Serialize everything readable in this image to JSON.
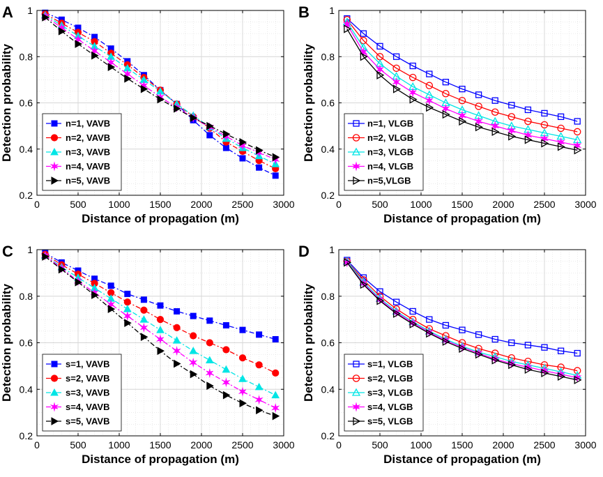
{
  "colors": {
    "series": [
      "#0000ff",
      "#ff0000",
      "#00e5e5",
      "#ff00ff",
      "#000000"
    ],
    "grid": "#d6d6d6",
    "axes": "#000000"
  },
  "chart_data": [
    {
      "panel_label": "A",
      "type": "line",
      "xlabel": "Distance of propagation (m)",
      "ylabel": "Detection probability",
      "xlim": [
        0,
        3000
      ],
      "ylim": [
        0.2,
        1
      ],
      "xticks": [
        "0",
        "500",
        "1000",
        "1500",
        "2000",
        "2500",
        "3000"
      ],
      "yticks": [
        "0.2",
        "0.4",
        "0.6",
        "0.8",
        "1"
      ],
      "grid": true,
      "line_style": "dashdot",
      "legend_position": "bottom-left",
      "x": [
        100,
        300,
        500,
        700,
        900,
        1100,
        1300,
        1500,
        1700,
        1900,
        2100,
        2300,
        2500,
        2700,
        2900
      ],
      "series": [
        {
          "name": "n=1, VAVB",
          "marker": "square-filled",
          "values": [
            0.99,
            0.96,
            0.925,
            0.885,
            0.835,
            0.78,
            0.72,
            0.655,
            0.595,
            0.525,
            0.46,
            0.405,
            0.36,
            0.32,
            0.285
          ]
        },
        {
          "name": "n=2, VAVB",
          "marker": "circle-filled",
          "values": [
            0.985,
            0.945,
            0.905,
            0.865,
            0.815,
            0.765,
            0.71,
            0.655,
            0.595,
            0.54,
            0.49,
            0.43,
            0.39,
            0.35,
            0.315
          ]
        },
        {
          "name": "n=3, VAVB",
          "marker": "triangle-up-filled",
          "values": [
            0.98,
            0.935,
            0.89,
            0.845,
            0.8,
            0.75,
            0.7,
            0.65,
            0.595,
            0.545,
            0.495,
            0.445,
            0.405,
            0.37,
            0.335
          ]
        },
        {
          "name": "n=4, VAVB",
          "marker": "star",
          "values": [
            0.975,
            0.925,
            0.875,
            0.825,
            0.775,
            0.725,
            0.675,
            0.625,
            0.58,
            0.535,
            0.495,
            0.455,
            0.415,
            0.385,
            0.355
          ]
        },
        {
          "name": "n=5, VAVB",
          "marker": "triangle-right-filled",
          "values": [
            0.97,
            0.91,
            0.855,
            0.805,
            0.755,
            0.705,
            0.66,
            0.615,
            0.575,
            0.535,
            0.5,
            0.465,
            0.43,
            0.395,
            0.365
          ]
        }
      ]
    },
    {
      "panel_label": "B",
      "type": "line",
      "xlabel": "Distance of propagation (m)",
      "ylabel": "Detection probability",
      "xlim": [
        0,
        3000
      ],
      "ylim": [
        0.2,
        1
      ],
      "xticks": [
        "0",
        "500",
        "1000",
        "1500",
        "2000",
        "2500",
        "3000"
      ],
      "yticks": [
        "0.2",
        "0.4",
        "0.6",
        "0.8",
        "1"
      ],
      "grid": true,
      "line_style": "solid",
      "legend_position": "bottom-left",
      "x": [
        100,
        300,
        500,
        700,
        900,
        1100,
        1300,
        1500,
        1700,
        1900,
        2100,
        2300,
        2500,
        2700,
        2900
      ],
      "series": [
        {
          "name": "n=1, VLGB",
          "marker": "square-open",
          "values": [
            0.965,
            0.9,
            0.845,
            0.8,
            0.76,
            0.725,
            0.69,
            0.66,
            0.635,
            0.61,
            0.59,
            0.57,
            0.555,
            0.54,
            0.52
          ]
        },
        {
          "name": "n=2, VLGB",
          "marker": "circle-open",
          "values": [
            0.96,
            0.87,
            0.8,
            0.75,
            0.71,
            0.675,
            0.64,
            0.61,
            0.585,
            0.56,
            0.54,
            0.52,
            0.505,
            0.49,
            0.475
          ]
        },
        {
          "name": "n=3, VLGB",
          "marker": "triangle-up-open",
          "values": [
            0.95,
            0.84,
            0.77,
            0.715,
            0.67,
            0.635,
            0.6,
            0.57,
            0.545,
            0.52,
            0.5,
            0.485,
            0.47,
            0.455,
            0.44
          ]
        },
        {
          "name": "n=4, VLGB",
          "marker": "star",
          "values": [
            0.94,
            0.82,
            0.745,
            0.69,
            0.645,
            0.61,
            0.575,
            0.545,
            0.52,
            0.5,
            0.48,
            0.46,
            0.445,
            0.43,
            0.415
          ]
        },
        {
          "name": "n=5,VLGB",
          "marker": "triangle-right-open",
          "values": [
            0.92,
            0.8,
            0.72,
            0.66,
            0.615,
            0.58,
            0.55,
            0.52,
            0.495,
            0.475,
            0.455,
            0.44,
            0.425,
            0.41,
            0.395
          ]
        }
      ]
    },
    {
      "panel_label": "C",
      "type": "line",
      "xlabel": "Distance of propagation (m)",
      "ylabel": "Detection probability",
      "xlim": [
        0,
        3000
      ],
      "ylim": [
        0.2,
        1
      ],
      "xticks": [
        "0",
        "500",
        "1000",
        "1500",
        "2000",
        "2500",
        "3000"
      ],
      "yticks": [
        "0.2",
        "0.4",
        "0.6",
        "0.8",
        "1"
      ],
      "grid": true,
      "line_style": "dashdot",
      "legend_position": "bottom-left",
      "x": [
        100,
        300,
        500,
        700,
        900,
        1100,
        1300,
        1500,
        1700,
        1900,
        2100,
        2300,
        2500,
        2700,
        2900
      ],
      "series": [
        {
          "name": "s=1, VAVB",
          "marker": "square-filled",
          "values": [
            0.985,
            0.945,
            0.91,
            0.875,
            0.845,
            0.81,
            0.785,
            0.76,
            0.735,
            0.715,
            0.695,
            0.675,
            0.655,
            0.635,
            0.615
          ]
        },
        {
          "name": "s=2, VAVB",
          "marker": "circle-filled",
          "values": [
            0.98,
            0.935,
            0.895,
            0.855,
            0.815,
            0.775,
            0.74,
            0.7,
            0.665,
            0.63,
            0.6,
            0.57,
            0.535,
            0.505,
            0.47
          ]
        },
        {
          "name": "s=3, VAVB",
          "marker": "triangle-up-filled",
          "values": [
            0.975,
            0.925,
            0.88,
            0.835,
            0.79,
            0.745,
            0.7,
            0.655,
            0.61,
            0.565,
            0.525,
            0.485,
            0.445,
            0.41,
            0.375
          ]
        },
        {
          "name": "s=4, VAVB",
          "marker": "star",
          "values": [
            0.975,
            0.92,
            0.865,
            0.815,
            0.765,
            0.715,
            0.665,
            0.615,
            0.565,
            0.515,
            0.47,
            0.43,
            0.39,
            0.355,
            0.32
          ]
        },
        {
          "name": "s=5, VAVB",
          "marker": "triangle-right-filled",
          "values": [
            0.97,
            0.915,
            0.86,
            0.805,
            0.745,
            0.685,
            0.625,
            0.565,
            0.51,
            0.465,
            0.415,
            0.375,
            0.34,
            0.31,
            0.285
          ]
        }
      ]
    },
    {
      "panel_label": "D",
      "type": "line",
      "xlabel": "Distance of propagation (m)",
      "ylabel": "Detection probability",
      "xlim": [
        0,
        3000
      ],
      "ylim": [
        0.2,
        1
      ],
      "xticks": [
        "0",
        "500",
        "1000",
        "1500",
        "2000",
        "2500",
        "3000"
      ],
      "yticks": [
        "0.2",
        "0.4",
        "0.6",
        "0.8",
        "1"
      ],
      "grid": true,
      "line_style": "solid",
      "legend_position": "bottom-left",
      "x": [
        100,
        300,
        500,
        700,
        900,
        1100,
        1300,
        1500,
        1700,
        1900,
        2100,
        2300,
        2500,
        2700,
        2900
      ],
      "series": [
        {
          "name": "s=1, VLGB",
          "marker": "square-open",
          "values": [
            0.955,
            0.88,
            0.82,
            0.775,
            0.735,
            0.7,
            0.675,
            0.655,
            0.635,
            0.615,
            0.6,
            0.59,
            0.58,
            0.565,
            0.555
          ]
        },
        {
          "name": "s=2, VLGB",
          "marker": "circle-open",
          "values": [
            0.95,
            0.87,
            0.8,
            0.745,
            0.7,
            0.66,
            0.63,
            0.6,
            0.575,
            0.555,
            0.535,
            0.52,
            0.505,
            0.495,
            0.48
          ]
        },
        {
          "name": "s=3, VLGB",
          "marker": "triangle-up-open",
          "values": [
            0.95,
            0.86,
            0.79,
            0.735,
            0.69,
            0.65,
            0.615,
            0.585,
            0.56,
            0.54,
            0.52,
            0.505,
            0.49,
            0.475,
            0.46
          ]
        },
        {
          "name": "s=4, VLGB",
          "marker": "star",
          "values": [
            0.945,
            0.855,
            0.785,
            0.73,
            0.685,
            0.645,
            0.61,
            0.58,
            0.555,
            0.53,
            0.51,
            0.495,
            0.48,
            0.465,
            0.45
          ]
        },
        {
          "name": "s=5, VLGB",
          "marker": "triangle-right-open",
          "values": [
            0.945,
            0.85,
            0.78,
            0.725,
            0.68,
            0.64,
            0.605,
            0.575,
            0.55,
            0.525,
            0.505,
            0.485,
            0.47,
            0.455,
            0.44
          ]
        }
      ]
    }
  ]
}
